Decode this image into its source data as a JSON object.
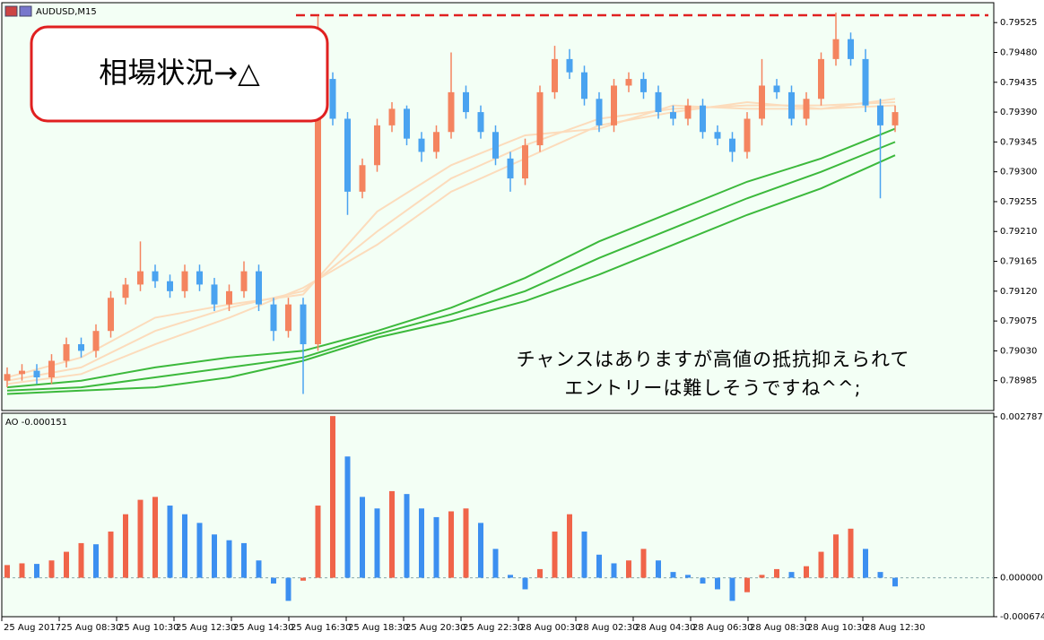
{
  "chart_data": [
    {
      "type": "candlestick",
      "title": "AUDUSD,M15",
      "open": [
        0.78985,
        0.78995,
        0.79,
        0.7899,
        0.79015,
        0.7904,
        0.7903,
        0.7906,
        0.7911,
        0.7913,
        0.7915,
        0.79135,
        0.7912,
        0.7915,
        0.7913,
        0.791,
        0.7912,
        0.7915,
        0.791,
        0.7906,
        0.791,
        0.7904,
        0.7944,
        0.7938,
        0.7927,
        0.7931,
        0.7937,
        0.79395,
        0.7935,
        0.7933,
        0.7936,
        0.7942,
        0.7939,
        0.7936,
        0.7932,
        0.7929,
        0.7934,
        0.7942,
        0.7947,
        0.7945,
        0.7941,
        0.7937,
        0.7943,
        0.7944,
        0.7942,
        0.7939,
        0.7938,
        0.794,
        0.7936,
        0.7935,
        0.7933,
        0.7938,
        0.7943,
        0.7942,
        0.7938,
        0.7941,
        0.7947,
        0.795,
        0.7947,
        0.794,
        0.7937
      ],
      "high": [
        0.79005,
        0.7901,
        0.7901,
        0.79025,
        0.7905,
        0.7905,
        0.7907,
        0.7912,
        0.7914,
        0.79195,
        0.7916,
        0.79145,
        0.7916,
        0.7916,
        0.7914,
        0.7913,
        0.79165,
        0.7916,
        0.7911,
        0.7911,
        0.7911,
        0.79535,
        0.7945,
        0.7939,
        0.7932,
        0.7938,
        0.79405,
        0.794,
        0.7936,
        0.7937,
        0.7948,
        0.7943,
        0.794,
        0.7937,
        0.7933,
        0.7935,
        0.7943,
        0.7949,
        0.79485,
        0.7946,
        0.7942,
        0.7944,
        0.7945,
        0.7945,
        0.7943,
        0.794,
        0.7941,
        0.7941,
        0.7937,
        0.7936,
        0.7939,
        0.7947,
        0.7944,
        0.7943,
        0.7942,
        0.7948,
        0.7954,
        0.7951,
        0.79485,
        0.7941,
        0.794
      ],
      "low": [
        0.78975,
        0.78985,
        0.7898,
        0.7898,
        0.79005,
        0.7902,
        0.7902,
        0.7905,
        0.791,
        0.7912,
        0.79125,
        0.7911,
        0.7911,
        0.7912,
        0.7909,
        0.7909,
        0.7911,
        0.7909,
        0.79045,
        0.7905,
        0.78965,
        0.7903,
        0.7937,
        0.79235,
        0.7926,
        0.793,
        0.7936,
        0.7934,
        0.79315,
        0.7932,
        0.7935,
        0.7938,
        0.7935,
        0.7931,
        0.7927,
        0.7928,
        0.7933,
        0.7941,
        0.7944,
        0.794,
        0.7936,
        0.7936,
        0.7942,
        0.7941,
        0.7938,
        0.7937,
        0.7937,
        0.7935,
        0.7934,
        0.79315,
        0.7932,
        0.7937,
        0.7941,
        0.7937,
        0.7937,
        0.794,
        0.7946,
        0.7946,
        0.7939,
        0.7926,
        0.7936
      ],
      "close": [
        0.78995,
        0.79,
        0.7899,
        0.79015,
        0.7904,
        0.7903,
        0.7906,
        0.7911,
        0.7913,
        0.7915,
        0.79135,
        0.7912,
        0.7915,
        0.7913,
        0.791,
        0.7912,
        0.7915,
        0.791,
        0.7906,
        0.791,
        0.7904,
        0.7944,
        0.7938,
        0.7927,
        0.7931,
        0.7937,
        0.79395,
        0.7935,
        0.7933,
        0.7936,
        0.7942,
        0.7939,
        0.7936,
        0.7932,
        0.7929,
        0.7934,
        0.7942,
        0.7947,
        0.7945,
        0.7941,
        0.7937,
        0.7943,
        0.7944,
        0.7942,
        0.7939,
        0.7938,
        0.794,
        0.7936,
        0.7935,
        0.7933,
        0.7938,
        0.7943,
        0.7942,
        0.7938,
        0.7941,
        0.7947,
        0.795,
        0.7947,
        0.794,
        0.7937,
        0.7939
      ],
      "up_color": "#f4845f",
      "down_color": "#4aa3f0",
      "ylim": [
        0.7894,
        0.79555
      ],
      "yticks": [
        0.78985,
        {
          "value": 0.7903,
          "label": "0.79030"
        },
        0.79075,
        {
          "value": 0.7912,
          "label": "0.79120"
        },
        0.79165,
        {
          "value": 0.7921,
          "label": "0.79210"
        },
        0.79255,
        {
          "value": 0.793,
          "label": "0.79300"
        },
        0.79345,
        {
          "value": 0.7939,
          "label": "0.79390"
        },
        0.79435,
        {
          "value": 0.7948,
          "label": "0.79480"
        },
        0.79525
      ],
      "series": [
        {
          "color": "#fcdcbc",
          "x": [
            0,
            5,
            10,
            15,
            20,
            25,
            30,
            35,
            40,
            45,
            50,
            55,
            60
          ],
          "values": [
            0.7899,
            0.7902,
            0.7908,
            0.791,
            0.79115,
            0.7924,
            0.7931,
            0.79355,
            0.79365,
            0.794,
            0.79395,
            0.79395,
            0.7941
          ]
        },
        {
          "color": "#fcdcbc",
          "x": [
            0,
            5,
            10,
            15,
            20,
            25,
            30,
            35,
            40,
            45,
            50,
            55,
            60
          ],
          "values": [
            0.78985,
            0.79005,
            0.7906,
            0.79095,
            0.7912,
            0.7921,
            0.7929,
            0.7934,
            0.7938,
            0.79395,
            0.794,
            0.794,
            0.79405
          ]
        },
        {
          "color": "#fcdcbc",
          "x": [
            0,
            5,
            10,
            15,
            20,
            25,
            30,
            35,
            40,
            45,
            50,
            55,
            60
          ],
          "values": [
            0.7898,
            0.78995,
            0.7904,
            0.7908,
            0.79125,
            0.7919,
            0.7927,
            0.7932,
            0.7937,
            0.7939,
            0.79405,
            0.79395,
            0.794
          ]
        },
        {
          "color": "#3cb93c",
          "x": [
            0,
            5,
            10,
            15,
            20,
            25,
            30,
            35,
            40,
            45,
            50,
            55,
            60
          ],
          "values": [
            0.78975,
            0.78985,
            0.79005,
            0.7902,
            0.7903,
            0.7906,
            0.79095,
            0.7914,
            0.79195,
            0.7924,
            0.79285,
            0.7932,
            0.79365
          ]
        },
        {
          "color": "#3cb93c",
          "x": [
            0,
            5,
            10,
            15,
            20,
            25,
            30,
            35,
            40,
            45,
            50,
            55,
            60
          ],
          "values": [
            0.7897,
            0.78975,
            0.7899,
            0.79005,
            0.7902,
            0.79055,
            0.79085,
            0.7912,
            0.7917,
            0.79215,
            0.7926,
            0.793,
            0.79345
          ]
        },
        {
          "color": "#3cb93c",
          "x": [
            0,
            5,
            10,
            15,
            20,
            25,
            30,
            35,
            40,
            45,
            50,
            55,
            60
          ],
          "values": [
            0.78965,
            0.7897,
            0.78975,
            0.7899,
            0.79015,
            0.7905,
            0.79075,
            0.79105,
            0.79145,
            0.7919,
            0.79235,
            0.79275,
            0.79325
          ]
        }
      ],
      "resistance": 0.79536,
      "resistance_color": "#e02020",
      "xlabels": [
        "25 Aug 2017",
        "25 Aug 08:30",
        "25 Aug 10:30",
        "25 Aug 12:30",
        "25 Aug 14:30",
        "25 Aug 16:30",
        "25 Aug 18:30",
        "25 Aug 20:30",
        "25 Aug 22:30",
        "28 Aug 00:30",
        "28 Aug 02:30",
        "28 Aug 04:30",
        "28 Aug 06:30",
        "28 Aug 08:30",
        "28 Aug 10:30",
        "28 Aug 12:30"
      ]
    },
    {
      "type": "bar",
      "title": "AO -0.000151",
      "values": [
        0.00022,
        0.00025,
        0.00024,
        0.0003,
        0.00045,
        0.0006,
        0.00058,
        0.0008,
        0.0011,
        0.00135,
        0.0014,
        0.00125,
        0.0011,
        0.00095,
        0.00075,
        0.00065,
        0.0006,
        0.0003,
        -0.0001,
        -0.0004,
        -5e-05,
        0.00125,
        0.0028,
        0.0021,
        0.0014,
        0.0012,
        0.0015,
        0.00145,
        0.0012,
        0.00105,
        0.00115,
        0.0012,
        0.00095,
        0.0005,
        5e-05,
        -0.0002,
        0.00015,
        0.0008,
        0.0011,
        0.0008,
        0.0004,
        0.00025,
        0.0003,
        0.0005,
        0.0003,
        0.0001,
        5e-05,
        -0.0001,
        -0.0002,
        -0.0004,
        -0.00025,
        5e-05,
        0.00015,
        0.0001,
        0.0002,
        0.00045,
        0.00075,
        0.00085,
        0.0005,
        0.0001,
        -0.00015
      ],
      "up_color": "#f06449",
      "down_color": "#3c8ff0",
      "ylim": [
        -0.000674,
        0.002787
      ],
      "yticks": [
        0.002787,
        {
          "value": 0,
          "label": "0.000000"
        },
        -0.000674
      ]
    }
  ],
  "annotations": {
    "box": "相場状況→△",
    "comment": [
      "チャンスはありますが高値の抵抗抑えられて",
      "エントリーは難しそうですね^^;"
    ]
  }
}
